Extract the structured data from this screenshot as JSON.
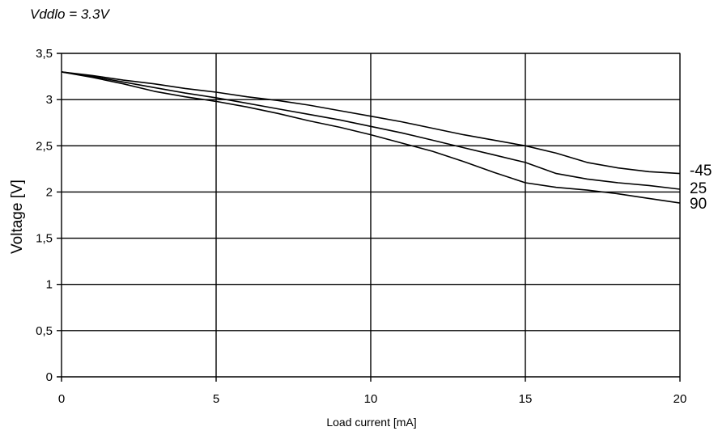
{
  "chart_data": {
    "type": "line",
    "title": "Vddlo = 3.3V",
    "xlabel": "Load current [mA]",
    "ylabel": "Voltage [V]",
    "xlim": [
      0,
      20
    ],
    "ylim": [
      0,
      3.5
    ],
    "x_ticks": [
      0,
      5,
      10,
      15,
      20
    ],
    "x_tick_labels": [
      "0",
      "5",
      "10",
      "15",
      "20"
    ],
    "y_ticks": [
      0,
      0.5,
      1,
      1.5,
      2,
      2.5,
      3,
      3.5
    ],
    "y_tick_labels": [
      "0",
      "0,5",
      "1",
      "1,5",
      "2",
      "2,5",
      "3",
      "3,5"
    ],
    "grid": true,
    "line_color": "#000000",
    "series": [
      {
        "name": "-45",
        "x": [
          0,
          1,
          2,
          3,
          4,
          5,
          6,
          7,
          8,
          9,
          10,
          11,
          12,
          13,
          14,
          15,
          16,
          17,
          18,
          19,
          20
        ],
        "y": [
          3.3,
          3.26,
          3.21,
          3.17,
          3.12,
          3.08,
          3.03,
          2.99,
          2.94,
          2.88,
          2.82,
          2.76,
          2.69,
          2.62,
          2.56,
          2.5,
          2.42,
          2.32,
          2.26,
          2.22,
          2.2
        ]
      },
      {
        "name": "25",
        "x": [
          0,
          1,
          2,
          3,
          4,
          5,
          6,
          7,
          8,
          9,
          10,
          11,
          12,
          13,
          14,
          15,
          16,
          17,
          18,
          19,
          20
        ],
        "y": [
          3.3,
          3.25,
          3.19,
          3.13,
          3.07,
          3.02,
          2.96,
          2.9,
          2.84,
          2.78,
          2.71,
          2.64,
          2.56,
          2.48,
          2.4,
          2.32,
          2.2,
          2.14,
          2.1,
          2.07,
          2.03
        ]
      },
      {
        "name": "90",
        "x": [
          0,
          1,
          2,
          3,
          4,
          5,
          6,
          7,
          8,
          9,
          10,
          11,
          12,
          13,
          14,
          15,
          16,
          17,
          18,
          19,
          20
        ],
        "y": [
          3.3,
          3.24,
          3.17,
          3.09,
          3.03,
          2.98,
          2.92,
          2.85,
          2.77,
          2.7,
          2.62,
          2.53,
          2.44,
          2.33,
          2.21,
          2.1,
          2.05,
          2.02,
          1.98,
          1.93,
          1.88
        ]
      }
    ]
  }
}
